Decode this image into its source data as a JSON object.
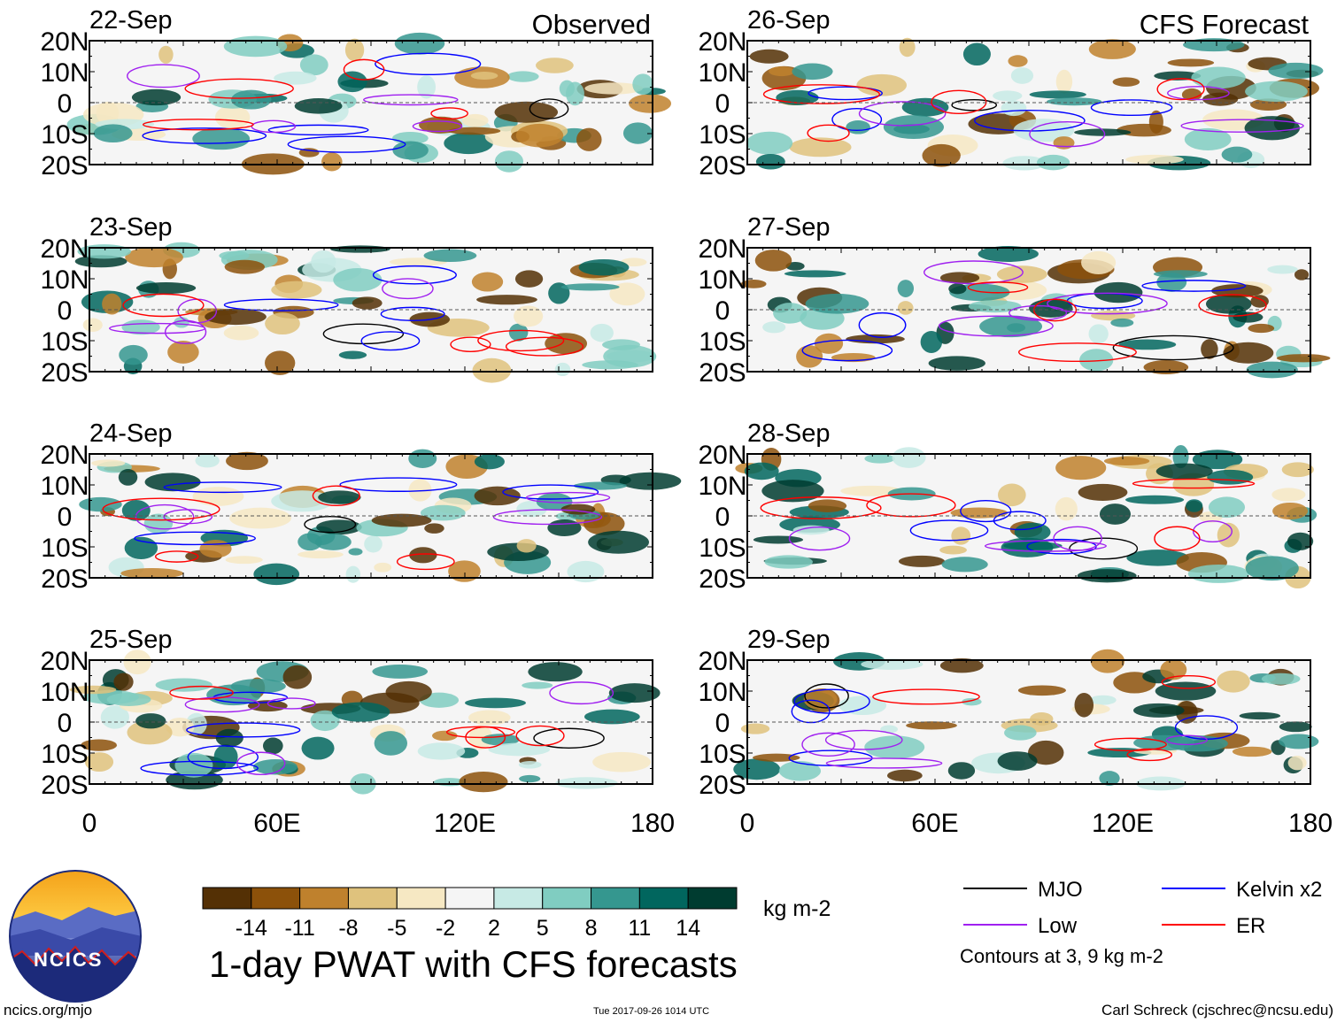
{
  "chart_data": {
    "type": "heatmap",
    "title": "1-day PWAT with CFS forecasts",
    "field": "PWAT anomaly",
    "units": "kg m-2",
    "x_axis": {
      "range": [
        0,
        180
      ],
      "ticks": [
        0,
        60,
        120,
        180
      ],
      "tick_labels": [
        "0",
        "60E",
        "120E",
        "180"
      ]
    },
    "y_axis": {
      "range": [
        -20,
        20
      ],
      "ticks": [
        20,
        10,
        0,
        -10,
        -20
      ],
      "tick_labels": [
        "20N",
        "10N",
        "0",
        "10S",
        "20S"
      ]
    },
    "column_labels": [
      "Observed",
      "CFS Forecast"
    ],
    "panels": [
      {
        "date": "22-Sep",
        "type": "Observed"
      },
      {
        "date": "23-Sep",
        "type": "Observed"
      },
      {
        "date": "24-Sep",
        "type": "Observed"
      },
      {
        "date": "25-Sep",
        "type": "Observed"
      },
      {
        "date": "26-Sep",
        "type": "CFS Forecast"
      },
      {
        "date": "27-Sep",
        "type": "CFS Forecast"
      },
      {
        "date": "28-Sep",
        "type": "CFS Forecast"
      },
      {
        "date": "29-Sep",
        "type": "CFS Forecast"
      }
    ],
    "colorbar": {
      "labels": [
        "-14",
        "-11",
        "-8",
        "-5",
        "-2",
        "2",
        "5",
        "8",
        "11",
        "14"
      ],
      "colors": [
        "#543005",
        "#8c510a",
        "#bf812d",
        "#dfc27d",
        "#f6e8c3",
        "#f5f5f5",
        "#c7eae5",
        "#80cdc1",
        "#35978f",
        "#01665e",
        "#003c30"
      ]
    },
    "contour_legend": [
      {
        "name": "MJO",
        "color": "#000000"
      },
      {
        "name": "Kelvin x2",
        "color": "#0000ff"
      },
      {
        "name": "Low",
        "color": "#a020f0"
      },
      {
        "name": "ER",
        "color": "#ff0000"
      }
    ],
    "contour_note": "Contours at 3, 9 kg m-2"
  },
  "footer": {
    "logo_text": "NCICS",
    "url": "ncics.org/mjo",
    "timestamp": "Tue 2017-09-26 1014 UTC",
    "author": "Carl Schreck (cjschrec@ncsu.edu)"
  }
}
